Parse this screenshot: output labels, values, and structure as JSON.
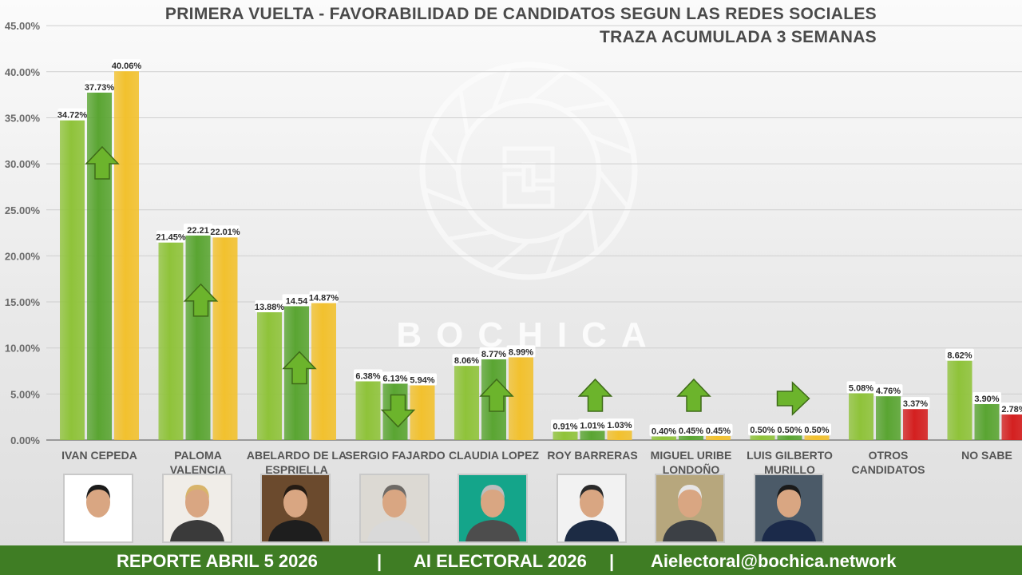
{
  "header": {
    "title": "PRIMERA VUELTA - FAVORABILIDAD DE CANDIDATOS SEGUN LAS REDES SOCIALES",
    "subtitle": "TRAZA ACUMULADA 3 SEMANAS"
  },
  "watermark": {
    "text": "BOCHICA",
    "icon": "bochica-sun-logo"
  },
  "footer": {
    "report": "REPORTE ABRIL 5 2026",
    "sep1": "|",
    "app": "AI ELECTORAL 2026",
    "sep2": "|",
    "email": "Aielectoral@bochica.network"
  },
  "colors": {
    "week1": "#8fc33a",
    "week2": "#5aa532",
    "week3": "#f2c12e",
    "decline": "#d42020",
    "arrow": "#6cb42c",
    "footer": "#3f7d24"
  },
  "chart_data": {
    "type": "bar",
    "ylim": [
      0,
      45
    ],
    "grid": true,
    "y_ticks": [
      "0.00%",
      "5.00%",
      "10.00%",
      "15.00%",
      "20.00%",
      "25.00%",
      "30.00%",
      "35.00%",
      "40.00%",
      "45.00%"
    ],
    "candidates": [
      {
        "name": [
          "IVAN CEPEDA"
        ],
        "values": [
          34.72,
          37.73,
          40.06
        ],
        "labels": [
          "34.72%",
          "37.73%",
          "40.06%"
        ],
        "trend": "up",
        "photo": "candidate-photo"
      },
      {
        "name": [
          "PALOMA",
          "VALENCIA"
        ],
        "values": [
          21.45,
          22.21,
          22.01
        ],
        "labels": [
          "21.45%",
          "22.21",
          "22.01%"
        ],
        "trend": "up",
        "photo": "candidate-photo"
      },
      {
        "name": [
          "ABELARDO DE LA",
          "ESPRIELLA"
        ],
        "values": [
          13.88,
          14.54,
          14.87
        ],
        "labels": [
          "13.88%",
          "14.54",
          "14.87%"
        ],
        "trend": "up",
        "photo": "candidate-photo"
      },
      {
        "name": [
          "SERGIO FAJARDO"
        ],
        "values": [
          6.38,
          6.13,
          5.94
        ],
        "labels": [
          "6.38%",
          "6.13%",
          "5.94%"
        ],
        "trend": "down",
        "photo": "candidate-photo"
      },
      {
        "name": [
          "CLAUDIA LOPEZ"
        ],
        "values": [
          8.06,
          8.77,
          8.99
        ],
        "labels": [
          "8.06%",
          "8.77%",
          "8.99%"
        ],
        "trend": "up",
        "photo": "candidate-photo"
      },
      {
        "name": [
          "ROY BARRERAS"
        ],
        "values": [
          0.91,
          1.01,
          1.03
        ],
        "labels": [
          "0.91%",
          "1.01%",
          "1.03%"
        ],
        "trend": "up",
        "photo": "candidate-photo"
      },
      {
        "name": [
          "MIGUEL URIBE",
          "LONDOÑO"
        ],
        "values": [
          0.4,
          0.45,
          0.45
        ],
        "labels": [
          "0.40%",
          "0.45%",
          "0.45%"
        ],
        "trend": "up",
        "photo": "candidate-photo"
      },
      {
        "name": [
          "LUIS GILBERTO",
          "MURILLO"
        ],
        "values": [
          0.5,
          0.5,
          0.5
        ],
        "labels": [
          "0.50%",
          "0.50%",
          "0.50%"
        ],
        "trend": "right",
        "photo": "candidate-photo"
      },
      {
        "name": [
          "OTROS",
          "CANDIDATOS"
        ],
        "values": [
          5.08,
          4.76,
          3.37
        ],
        "labels": [
          "5.08%",
          "4.76%",
          "3.37%"
        ],
        "trend": "none",
        "photo": ""
      },
      {
        "name": [
          "NO SABE"
        ],
        "values": [
          8.62,
          3.9,
          2.78
        ],
        "labels": [
          "8.62%",
          "3.90%",
          "2.78%"
        ],
        "trend": "none",
        "photo": ""
      }
    ]
  }
}
